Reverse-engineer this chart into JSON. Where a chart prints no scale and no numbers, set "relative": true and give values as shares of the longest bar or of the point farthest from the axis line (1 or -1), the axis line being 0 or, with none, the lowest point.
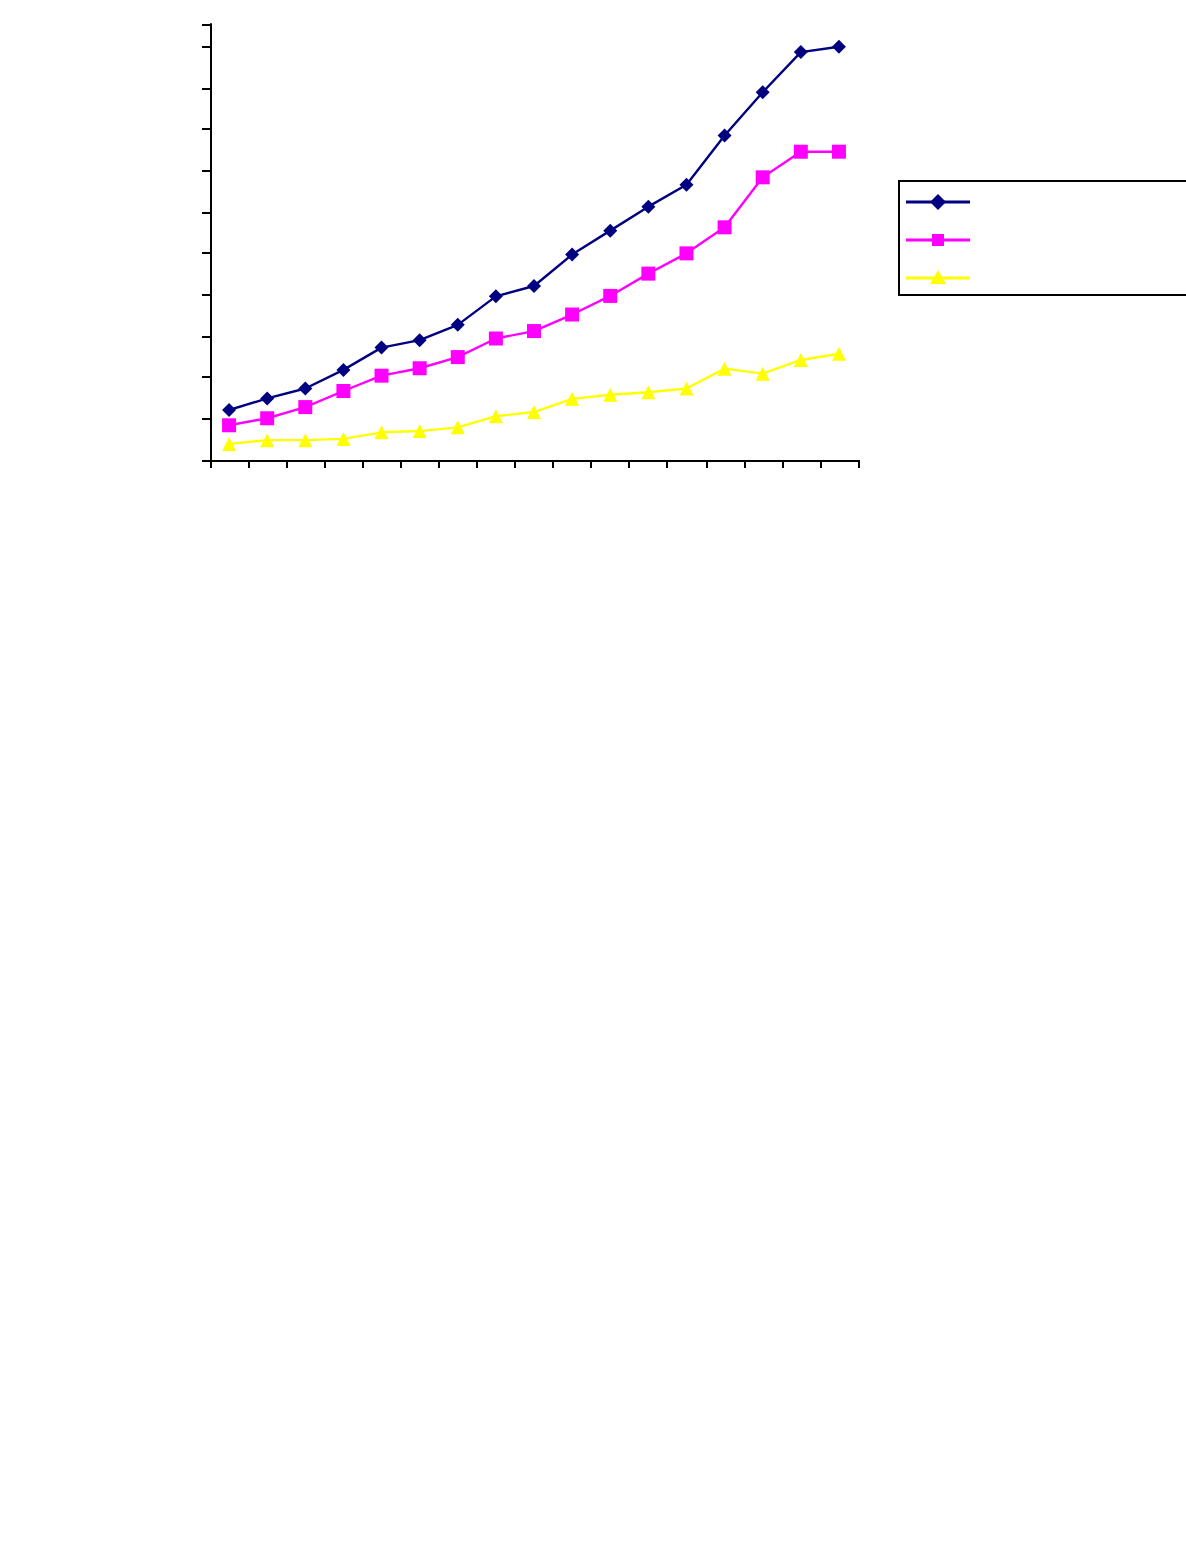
{
  "chart_data": {
    "type": "line",
    "relative": true,
    "categories": [
      null,
      null,
      null,
      null,
      null,
      null,
      null,
      null,
      null,
      null,
      null,
      null,
      null,
      null,
      null,
      null,
      null
    ],
    "series": [
      {
        "color": "#000080",
        "marker": "diamond",
        "values": [
          0.121,
          0.149,
          0.173,
          0.218,
          0.272,
          0.29,
          0.327,
          0.396,
          0.421,
          0.497,
          0.555,
          0.613,
          0.666,
          0.785,
          0.89,
          0.987,
          1
        ]
      },
      {
        "color": "#ff00ff",
        "marker": "square",
        "values": [
          0.084,
          0.101,
          0.128,
          0.167,
          0.204,
          0.222,
          0.249,
          0.294,
          0.312,
          0.352,
          0.397,
          0.451,
          0.5,
          0.563,
          0.684,
          0.746,
          0.746
        ]
      },
      {
        "color": "#ffff00",
        "marker": "triangle",
        "values": [
          0.039,
          0.048,
          0.048,
          0.051,
          0.067,
          0.07,
          0.079,
          0.106,
          0.116,
          0.148,
          0.158,
          0.164,
          0.173,
          0.221,
          0.209,
          0.242,
          0.257
        ]
      }
    ],
    "grid": false
  }
}
